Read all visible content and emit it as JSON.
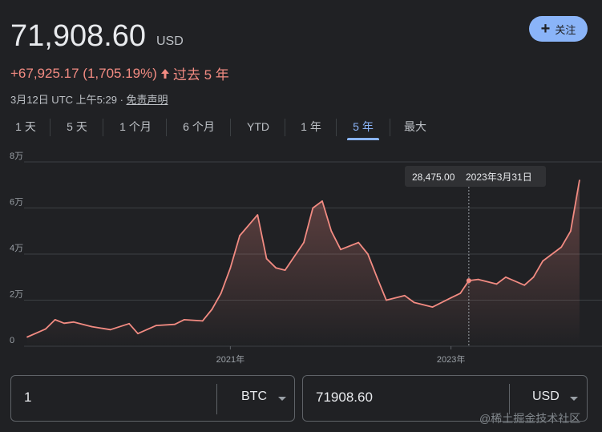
{
  "header": {
    "price": "71,908.60",
    "currency": "USD",
    "follow_label": "关注",
    "change": "+67,925.17 (1,705.19%)",
    "change_period": "过去 5 年",
    "timestamp": "3月12日 UTC 上午5:29",
    "separator": "·",
    "disclaimer": "免责声明"
  },
  "colors": {
    "accent": "#8ab4f8",
    "line": "#f28b82",
    "background": "#202124"
  },
  "tabs": [
    "1 天",
    "5 天",
    "1 个月",
    "6 个月",
    "YTD",
    "1 年",
    "5 年",
    "最大"
  ],
  "active_tab": "5 年",
  "tooltip": {
    "value": "28,475.00",
    "date": "2023年3月31日"
  },
  "chart_data": {
    "type": "line",
    "title": "",
    "xlabel": "",
    "ylabel": "",
    "x_ticks": [
      "2021年",
      "2023年"
    ],
    "y_ticks": [
      "0",
      "2万",
      "4万",
      "6万",
      "8万"
    ],
    "ylim": [
      0,
      80000
    ],
    "grid": true,
    "series": [
      {
        "x": [
          "2019-03",
          "2019-05",
          "2019-06",
          "2019-07",
          "2019-08",
          "2019-10",
          "2019-12",
          "2020-02",
          "2020-03",
          "2020-05",
          "2020-07",
          "2020-08",
          "2020-10",
          "2020-11",
          "2020-12",
          "2021-01",
          "2021-02",
          "2021-04",
          "2021-05",
          "2021-06",
          "2021-07",
          "2021-09",
          "2021-10",
          "2021-11",
          "2021-12",
          "2022-01",
          "2022-03",
          "2022-04",
          "2022-05",
          "2022-06",
          "2022-08",
          "2022-09",
          "2022-11",
          "2023-01",
          "2023-02",
          "2023-03",
          "2023-04",
          "2023-06",
          "2023-07",
          "2023-09",
          "2023-10",
          "2023-11",
          "2024-01",
          "2024-02",
          "2024-03"
        ],
        "values": [
          4000,
          7500,
          11500,
          10000,
          10500,
          8500,
          7200,
          9800,
          5500,
          9000,
          9500,
          11500,
          11000,
          16000,
          23000,
          34000,
          48000,
          57000,
          38000,
          34000,
          33000,
          45000,
          60000,
          63000,
          50000,
          42000,
          45000,
          40000,
          30000,
          20000,
          22000,
          19000,
          17000,
          21000,
          23000,
          28475,
          29000,
          27000,
          30000,
          26500,
          30000,
          37000,
          43000,
          50000,
          72000
        ]
      }
    ]
  },
  "converter": {
    "from_value": "1",
    "from_unit": "BTC",
    "to_value": "71908.60",
    "to_unit": "USD"
  },
  "watermark": "@稀土掘金技术社区"
}
